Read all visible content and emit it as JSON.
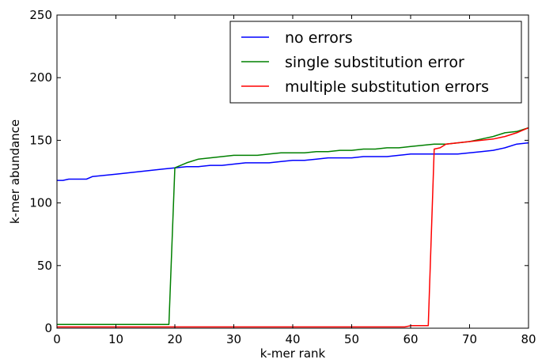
{
  "chart_data": {
    "type": "line",
    "xlabel": "k-mer rank",
    "ylabel": "k-mer abundance",
    "xlim": [
      0,
      80
    ],
    "ylim": [
      0,
      250
    ],
    "xticks": [
      "0",
      "10",
      "20",
      "30",
      "40",
      "50",
      "60",
      "70",
      "80"
    ],
    "yticks": [
      "0",
      "50",
      "100",
      "150",
      "200",
      "250"
    ],
    "grid": false,
    "legend_placement": "top-right",
    "series": [
      {
        "name": "no errors",
        "color": "#0000ff",
        "x": [
          0,
          1,
          2,
          5,
          6,
          8,
          10,
          12,
          14,
          16,
          18,
          20,
          22,
          24,
          26,
          28,
          30,
          32,
          34,
          36,
          38,
          40,
          42,
          44,
          46,
          48,
          50,
          52,
          54,
          56,
          58,
          60,
          62,
          64,
          66,
          68,
          70,
          72,
          74,
          76,
          78,
          80
        ],
        "y": [
          118,
          118,
          119,
          119,
          121,
          122,
          123,
          124,
          125,
          126,
          127,
          128,
          129,
          129,
          130,
          130,
          131,
          132,
          132,
          132,
          133,
          134,
          134,
          135,
          136,
          136,
          136,
          137,
          137,
          137,
          138,
          139,
          139,
          139,
          139,
          139,
          140,
          141,
          142,
          144,
          147,
          148
        ]
      },
      {
        "name": "single substitution error",
        "color": "#008000",
        "x": [
          0,
          19,
          20,
          22,
          24,
          26,
          28,
          30,
          32,
          34,
          36,
          38,
          40,
          42,
          44,
          46,
          48,
          50,
          52,
          54,
          56,
          58,
          60,
          62,
          64,
          66,
          68,
          70,
          72,
          74,
          76,
          78,
          80
        ],
        "y": [
          3,
          3,
          128,
          132,
          135,
          136,
          137,
          138,
          138,
          138,
          139,
          140,
          140,
          140,
          141,
          141,
          142,
          142,
          143,
          143,
          144,
          144,
          145,
          146,
          147,
          147,
          148,
          149,
          151,
          153,
          156,
          157,
          160
        ]
      },
      {
        "name": "multiple substitution errors",
        "color": "#ff0000",
        "x": [
          0,
          59,
          60,
          63,
          64,
          65,
          66,
          68,
          70,
          72,
          74,
          76,
          78,
          80
        ],
        "y": [
          1,
          1,
          2,
          2,
          143,
          144,
          147,
          148,
          149,
          150,
          151,
          153,
          156,
          160
        ]
      }
    ]
  }
}
